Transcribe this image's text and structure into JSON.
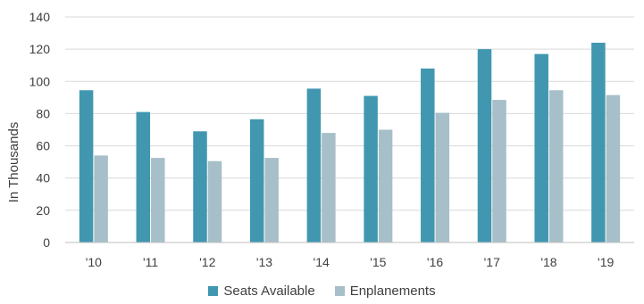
{
  "chart_data": {
    "type": "bar",
    "categories": [
      "'10",
      "'11",
      "'12",
      "'13",
      "'14",
      "'15",
      "'16",
      "'17",
      "'18",
      "'19"
    ],
    "series": [
      {
        "name": "Seats Available",
        "color": "#4197b0",
        "values": [
          94.5,
          81,
          69,
          76.5,
          95.5,
          91,
          108,
          120,
          117,
          124
        ]
      },
      {
        "name": "Enplanements",
        "color": "#a7bfc8",
        "values": [
          54,
          52.5,
          50.5,
          52.5,
          68,
          70,
          80.5,
          88.5,
          94.5,
          91.5
        ]
      }
    ],
    "ylabel": "In Thousands",
    "xlabel": "",
    "ylim": [
      0,
      140
    ],
    "yticks": [
      0,
      20,
      40,
      60,
      80,
      100,
      120,
      140
    ],
    "grid": true,
    "legend_position": "bottom"
  }
}
